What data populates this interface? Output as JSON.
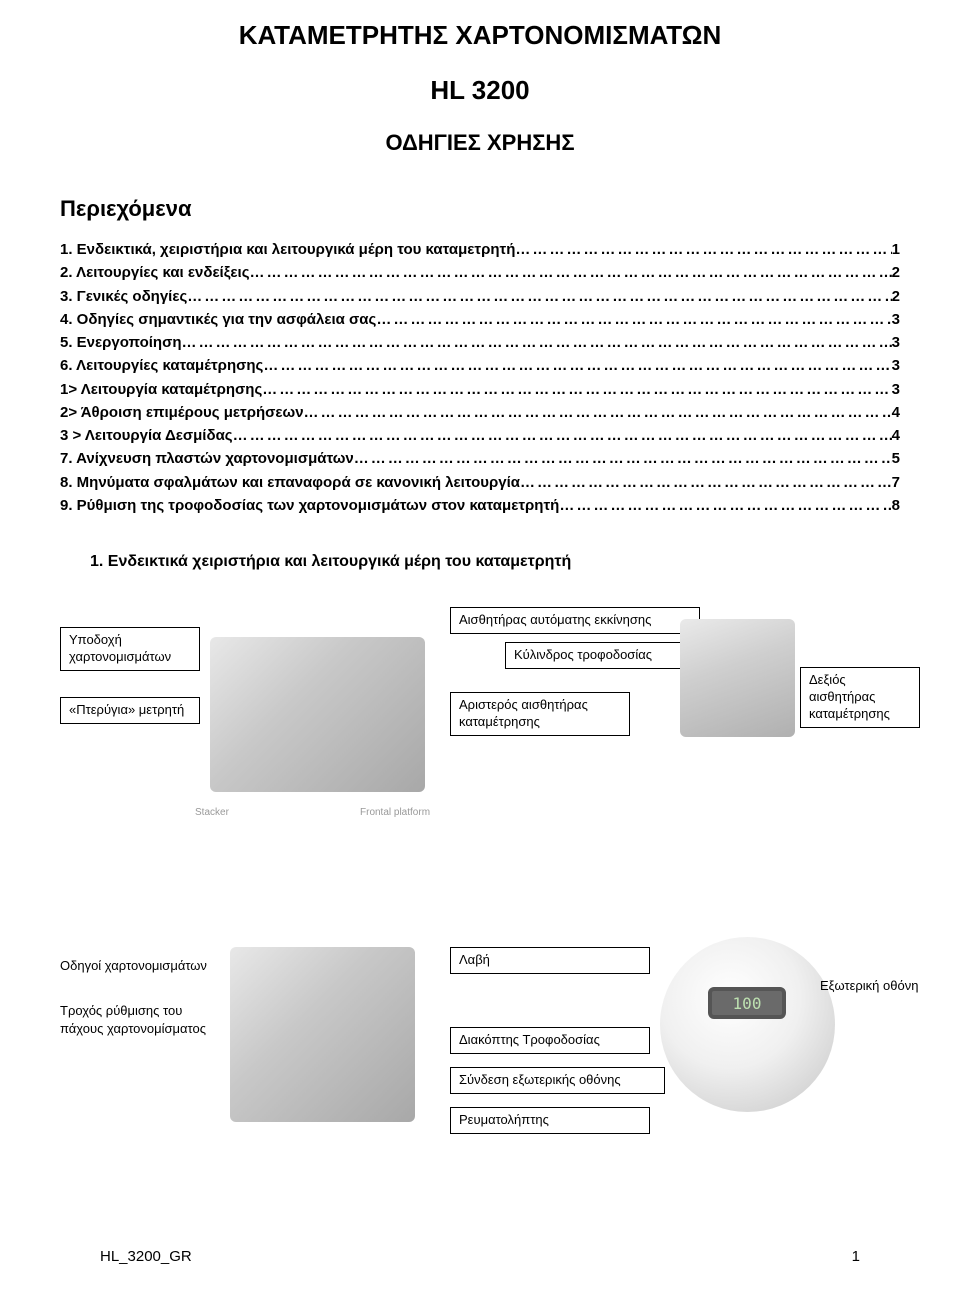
{
  "header": {
    "title": "ΚΑΤΑΜΕΤΡΗΤΗΣ ΧΑΡΤΟΝΟΜΙΣΜΑΤΩΝ",
    "model": "HL 3200",
    "subtitle": "ΟΔΗΓΙΕΣ ΧΡΗΣΗΣ"
  },
  "toc": {
    "heading": "Περιεχόμενα",
    "items": [
      {
        "label": "1. Eνδεικτικά, χειριστήρια και λειτουργικά μέρη του καταμετρητή",
        "page": "1"
      },
      {
        "label": "2. Λειτουργίες και ενδείξεις",
        "page": "2"
      },
      {
        "label": "3. Γενικές οδηγίες",
        "page": "2"
      },
      {
        "label": "4. Oδηγίες σημαντικές για την ασφάλεια σας",
        "page": "3"
      },
      {
        "label": "5. Ενεργοποίηση",
        "page": "3"
      },
      {
        "label": "6. Λειτουργίες καταμέτρησης",
        "page": "3"
      },
      {
        "label": "1>  Λειτουργία καταμέτρησης",
        "page": "3"
      },
      {
        "label": "2>  Άθροιση επιμέρους μετρήσεων",
        "page": "4"
      },
      {
        "label": "3 >  Λειτουργία Δεσμίδας",
        "page": "4"
      },
      {
        "label": "7. Ανίχνευση πλαστών χαρτονομισμάτων",
        "page": "5"
      },
      {
        "label": "8. Μηνύματα σφαλμάτων και επαναφορά σε κανονική λειτουργία",
        "page": "7"
      },
      {
        "label": "9. Ρύθμιση της τροφοδοσίας των χαρτονομισμάτων στον καταμετρητή",
        "page": "8"
      }
    ]
  },
  "section1_heading": "1. Ενδεικτικά χειριστήρια και λειτουργικά μέρη του καταμετρητή",
  "diagram1": {
    "hopper": "Υποδοχή χαρτονομισμάτων",
    "wings": "«Πτερύγια» μετρητή",
    "stacker": "Stacker",
    "frontal": "Frontal platform",
    "autostart": "Αισθητήρας αυτόματης  εκκίνησης",
    "roller": "Κύλινδρος τροφοδοσίας",
    "leftsensor": "Αριστερός αισθητήρας καταμέτρησης",
    "rightsensor": "Δεξιός αισθητήρας καταμέτρησης"
  },
  "diagram2": {
    "guides": "Οδηγοί χαρτονομισμάτων",
    "thickness": "Τροχός ρύθμισης του πάχους χαρτονομίσματος",
    "handle": "Λαβή",
    "feedswitch": "Διακόπτης Τροφοδοσίας",
    "extconn": "Σύνδεση εξωτερικής οθόνης",
    "power": "Ρευματολήπτης",
    "extdisplay": "Εξωτερική οθόνη",
    "readout": "100"
  },
  "footer": {
    "doc_id": "HL_3200_GR",
    "page_no": "1"
  }
}
